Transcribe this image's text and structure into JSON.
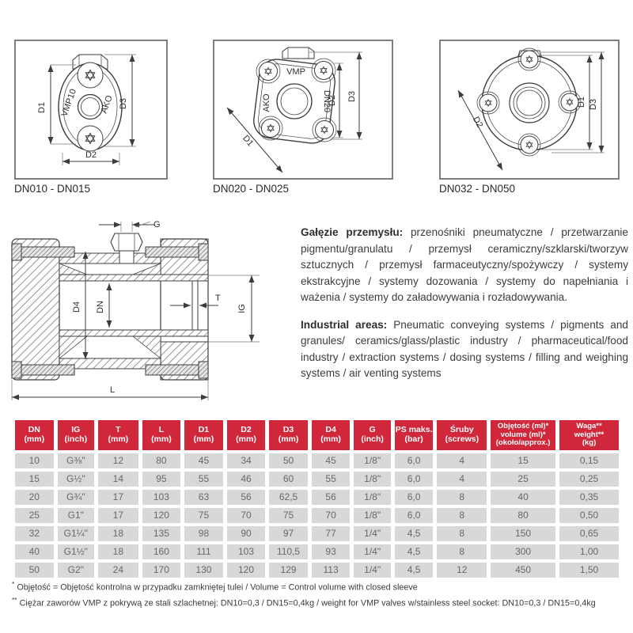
{
  "drawings": {
    "d1": {
      "label": "DN010 - DN015",
      "text_vmp": "VMP10",
      "text_ako": "AKO",
      "dim_d1": "D1",
      "dim_d2": "D2",
      "dim_d3": "D3"
    },
    "d2": {
      "label": "DN020 - DN025",
      "text_vmp": "VMP",
      "text_ako": "AKO",
      "text_dn": "DN20",
      "dim_d1": "D1",
      "dim_d2": "D2",
      "dim_d3": "D3"
    },
    "d3": {
      "label": "DN032 - DN050",
      "dim_d1": "D1",
      "dim_d2": "D2",
      "dim_d3": "D3"
    }
  },
  "cross_section": {
    "dim_g": "G",
    "dim_d4": "D4",
    "dim_dn": "DN",
    "dim_t": "T",
    "dim_ig": "IG",
    "dim_l": "L"
  },
  "industries": {
    "pl_lead": "Gałęzie przemysłu:",
    "pl_text": "przenośniki pneumatyczne / przetwarzanie pigmentu/granulatu / przemysł ceramiczny/szklarski/tworzyw sztucznych / przemysł farmaceutyczny/spożywczy / systemy ekstrakcyjne / systemy dozowania / systemy do napełniania i ważenia / systemy do załadowywania i rozładowywania.",
    "en_lead": "Industrial areas:",
    "en_text": "Pneumatic conveying systems / pigments and granules/ ceramics/glass/plastic industry / pharmaceutical/food industry / extraction systems / dosing systems / filling and weighing systems / air venting systems"
  },
  "table": {
    "header_bg": "#d0273a",
    "cell_bg": "#d8d8d8",
    "headers": [
      [
        "DN",
        "(mm)"
      ],
      [
        "IG",
        "(inch)"
      ],
      [
        "T",
        "(mm)"
      ],
      [
        "L",
        "(mm)"
      ],
      [
        "D1",
        "(mm)"
      ],
      [
        "D2",
        "(mm)"
      ],
      [
        "D3",
        "(mm)"
      ],
      [
        "D4",
        "(mm)"
      ],
      [
        "G",
        "(inch)"
      ],
      [
        "PS maks.",
        "(bar)"
      ],
      [
        "Śruby",
        "(screws)"
      ],
      [
        "Objętość (ml)*",
        "volume (ml)*",
        "(około/approx.)"
      ],
      [
        "Waga**",
        "weight**",
        "(kg)"
      ]
    ],
    "rows": [
      [
        "10",
        "G⅜\"",
        "12",
        "80",
        "45",
        "34",
        "50",
        "45",
        "1/8\"",
        "6,0",
        "4",
        "15",
        "0,15"
      ],
      [
        "15",
        "G½\"",
        "14",
        "95",
        "55",
        "46",
        "60",
        "55",
        "1/8\"",
        "6,0",
        "4",
        "25",
        "0,25"
      ],
      [
        "20",
        "G¾\"",
        "17",
        "103",
        "63",
        "56",
        "62,5",
        "56",
        "1/8\"",
        "6,0",
        "8",
        "40",
        "0,35"
      ],
      [
        "25",
        "G1\"",
        "17",
        "120",
        "75",
        "70",
        "75",
        "70",
        "1/8\"",
        "6,0",
        "8",
        "80",
        "0,50"
      ],
      [
        "32",
        "G1¼\"",
        "18",
        "135",
        "98",
        "90",
        "97",
        "77",
        "1/4\"",
        "4,5",
        "8",
        "150",
        "0,65"
      ],
      [
        "40",
        "G1½\"",
        "18",
        "160",
        "111",
        "103",
        "110,5",
        "93",
        "1/4\"",
        "4,5",
        "8",
        "300",
        "1,00"
      ],
      [
        "50",
        "G2\"",
        "24",
        "170",
        "130",
        "120",
        "129",
        "113",
        "1/4\"",
        "4,5",
        "12",
        "450",
        "1,50"
      ]
    ]
  },
  "footnotes": [
    {
      "marker": "*",
      "text": "Objętość = Objętość kontrolna w przypadku zamkniętej tulei / Volume = Control volume with closed sleeve"
    },
    {
      "marker": "**",
      "text": "Ciężar zaworów VMP z pokrywą ze stali szlachetnej: DN10=0,3 / DN15=0,4kg / weight for VMP valves w/stainless steel socket: DN10=0,3 / DN15=0,4kg"
    }
  ]
}
